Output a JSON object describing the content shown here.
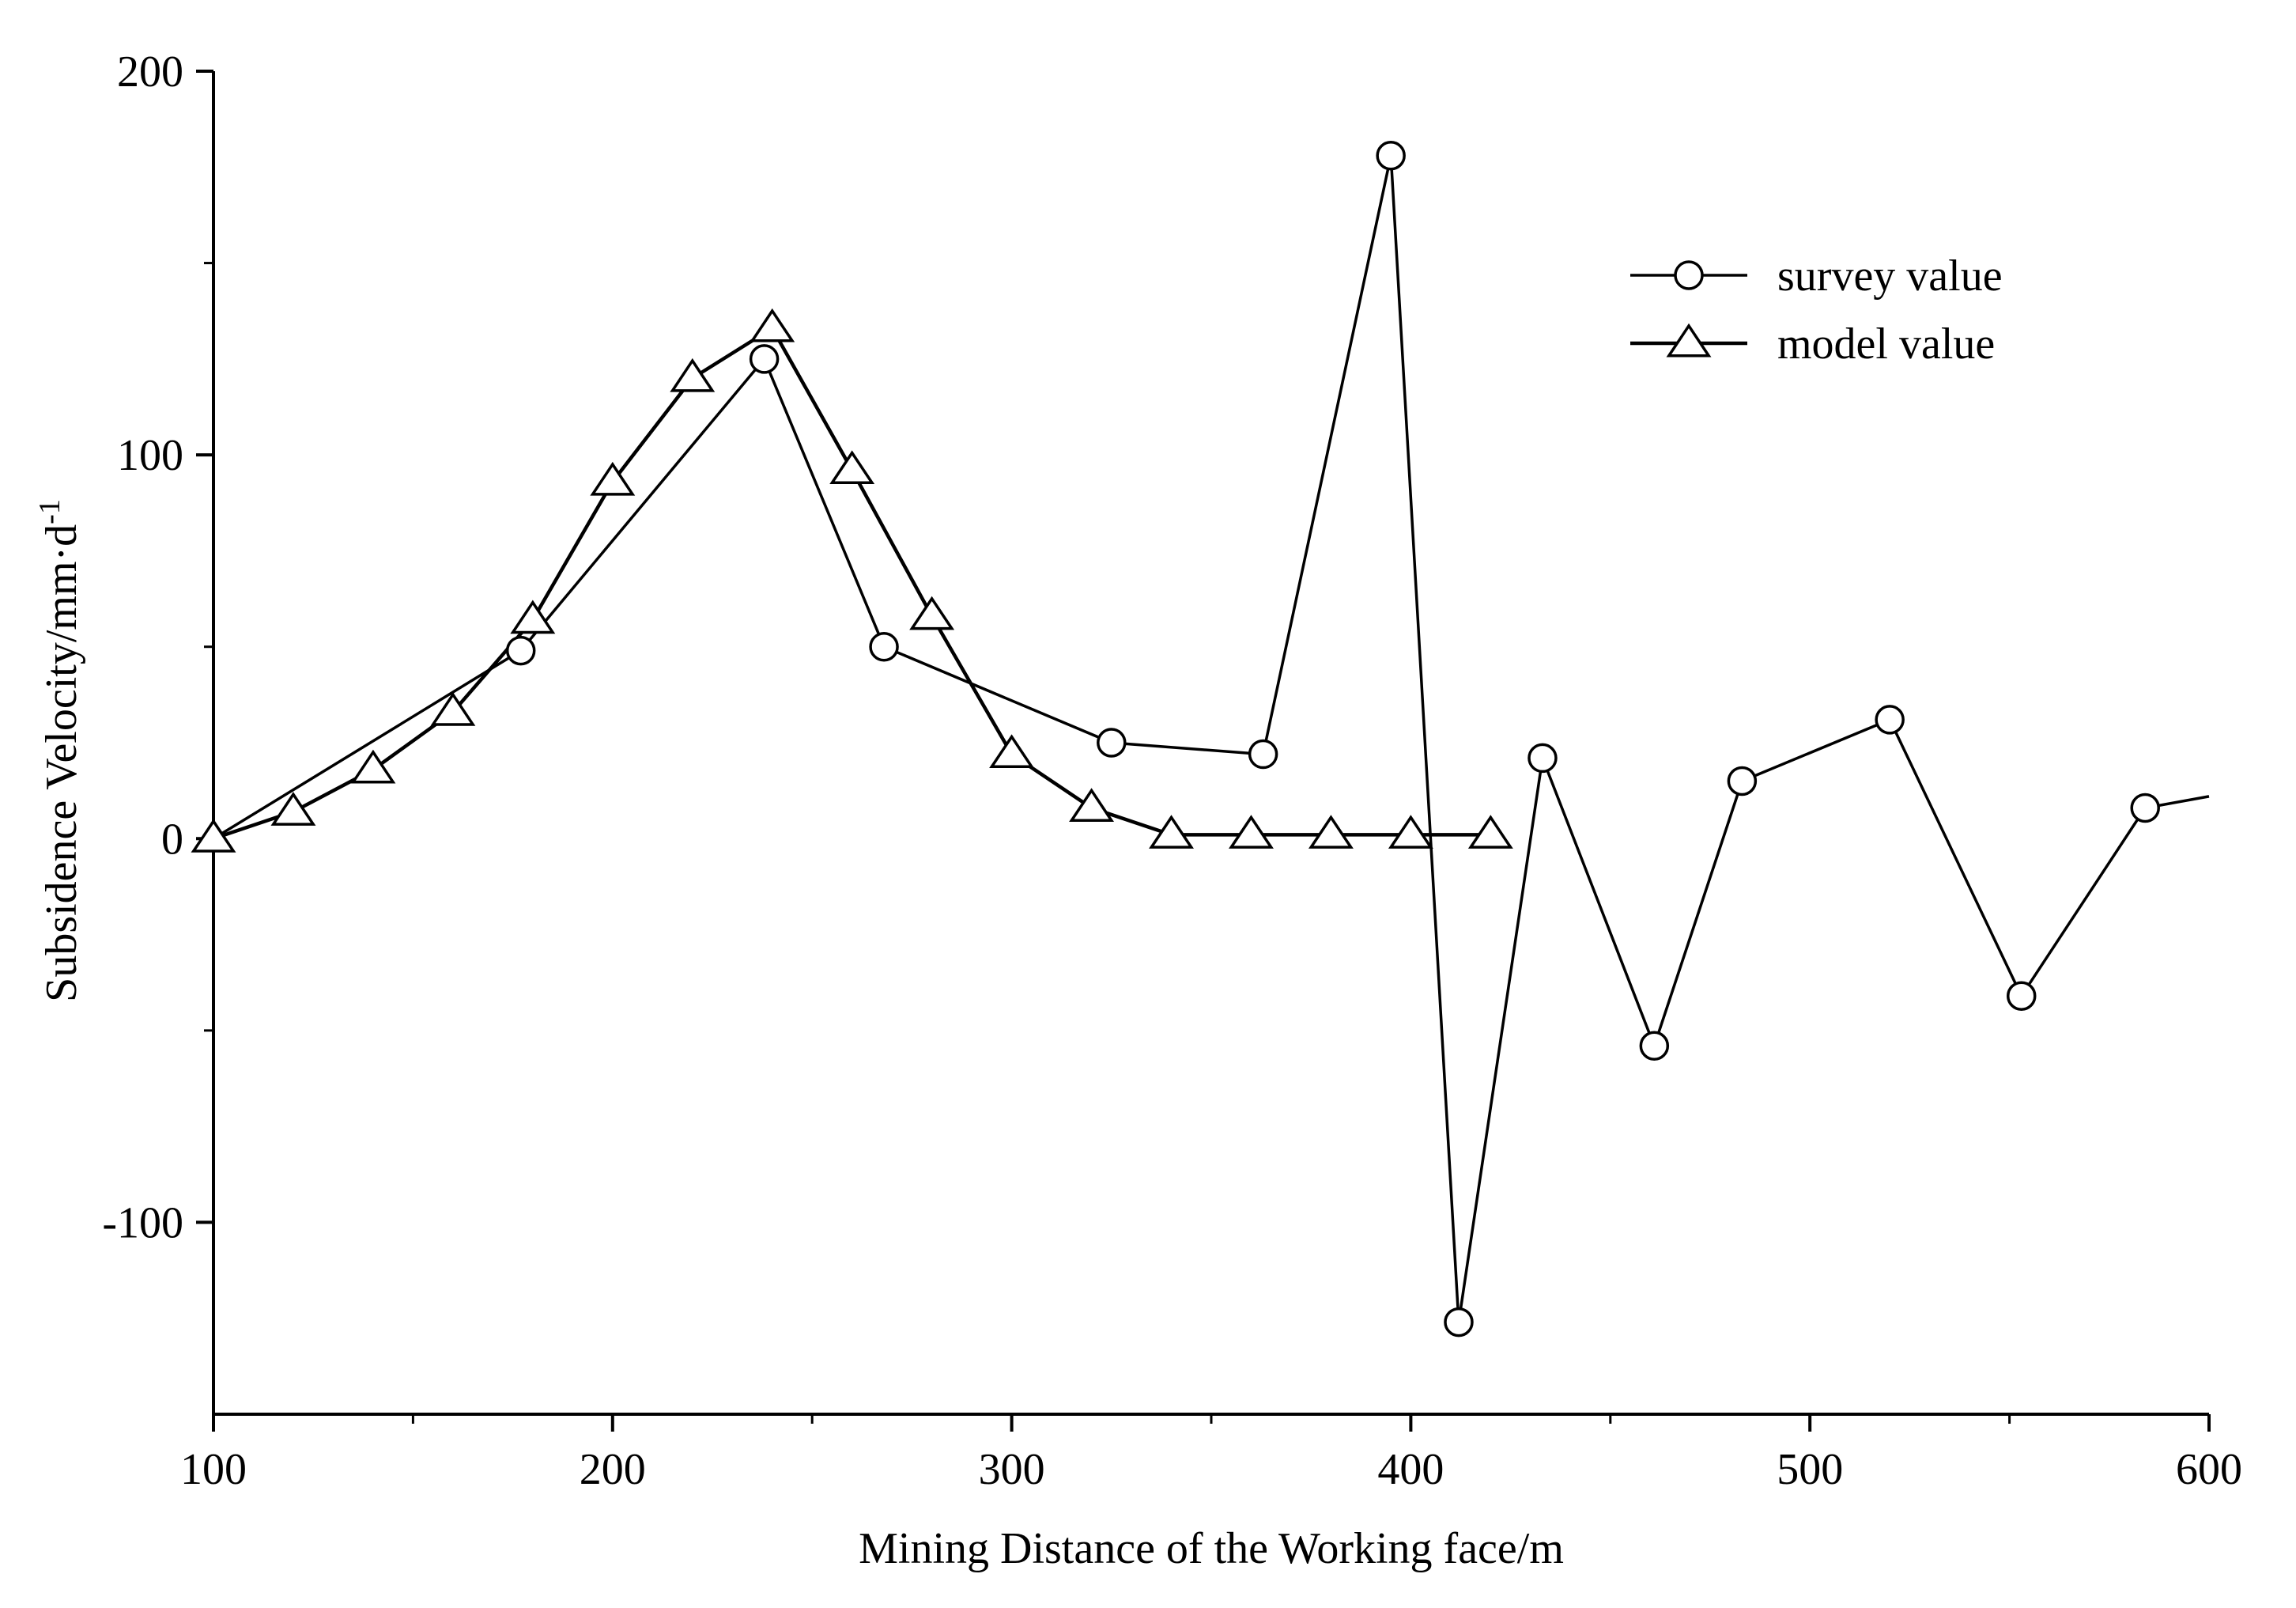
{
  "chart_data": {
    "type": "line",
    "xlabel": "Mining Distance of the Working face/m",
    "ylabel": "Subsidence Velocity/mm·d",
    "ylabel_sup": "-1",
    "xlim": [
      100,
      600
    ],
    "ylim": [
      -150,
      200
    ],
    "xticks": [
      100,
      200,
      300,
      400,
      500,
      600
    ],
    "yticks": [
      -100,
      0,
      100,
      200
    ],
    "xticks_minor": [
      150,
      250,
      350,
      450,
      550
    ],
    "yticks_minor": [
      -50,
      50,
      150
    ],
    "grid": false,
    "legend_position": "top-right",
    "line_color": "#000000",
    "series": [
      {
        "name": "survey value",
        "marker": "circle",
        "x": [
          100,
          177,
          238,
          268,
          325,
          363,
          395,
          412,
          433,
          461,
          483,
          520,
          553,
          584,
          600
        ],
        "y": [
          0,
          49,
          125,
          50,
          25,
          22,
          178,
          -126,
          21,
          -54,
          15,
          31,
          -41,
          8,
          11
        ],
        "marker_mask": [
          false,
          true,
          true,
          true,
          true,
          true,
          true,
          true,
          true,
          true,
          true,
          true,
          true,
          true,
          false
        ]
      },
      {
        "name": "model value",
        "marker": "triangle",
        "x": [
          100,
          120,
          140,
          160,
          180,
          200,
          220,
          240,
          260,
          280,
          300,
          320,
          340,
          360,
          380,
          400,
          420
        ],
        "y": [
          0,
          7,
          18,
          33,
          57,
          93,
          120,
          133,
          96,
          58,
          22,
          8,
          1,
          1,
          1,
          1,
          1
        ]
      }
    ]
  }
}
